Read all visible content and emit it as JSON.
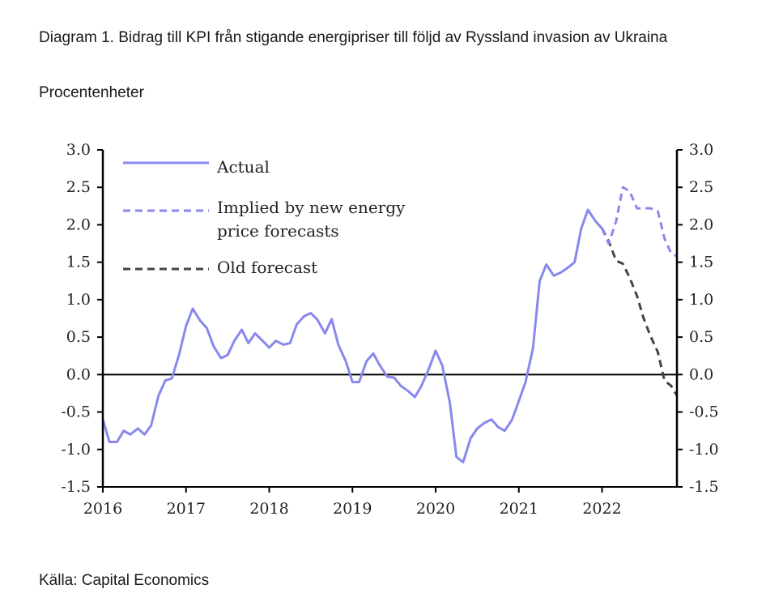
{
  "page": {
    "title": "Diagram 1. Bidrag till KPI från stigande energipriser till följd av Ryssland invasion av Ukraina",
    "subtitle": "Procentenheter",
    "source": "Källa: Capital Economics"
  },
  "colors": {
    "actual": "#8888ee",
    "implied": "#8888ee",
    "old": "#444444",
    "axis": "#000000"
  },
  "chart_data": {
    "type": "line",
    "title": "Bidrag till KPI från stigande energipriser till följd av Ryssland invasion av Ukraina",
    "ylabel": "Procentenheter",
    "ylim": [
      -1.5,
      3.0
    ],
    "xlim": [
      2016.0,
      2022.9
    ],
    "y_ticks": [
      "3.0",
      "2.5",
      "2.0",
      "1.5",
      "1.0",
      "0.5",
      "0.0",
      "-0.5",
      "-1.0",
      "-1.5"
    ],
    "x_ticks": [
      "2016",
      "2017",
      "2018",
      "2019",
      "2020",
      "2021",
      "2022"
    ],
    "legend": [
      "Actual",
      "Implied by new energy",
      "price forecasts",
      "Old forecast"
    ],
    "legend_position": "top-left",
    "series": [
      {
        "name": "Actual",
        "style": "solid",
        "x": [
          2016.0,
          2016.08,
          2016.17,
          2016.25,
          2016.33,
          2016.42,
          2016.5,
          2016.58,
          2016.67,
          2016.75,
          2016.83,
          2016.92,
          2017.0,
          2017.08,
          2017.17,
          2017.25,
          2017.33,
          2017.42,
          2017.5,
          2017.58,
          2017.67,
          2017.75,
          2017.83,
          2017.92,
          2018.0,
          2018.08,
          2018.17,
          2018.25,
          2018.33,
          2018.42,
          2018.5,
          2018.58,
          2018.67,
          2018.75,
          2018.83,
          2018.92,
          2019.0,
          2019.08,
          2019.17,
          2019.25,
          2019.33,
          2019.42,
          2019.5,
          2019.58,
          2019.67,
          2019.75,
          2019.83,
          2019.92,
          2020.0,
          2020.08,
          2020.17,
          2020.25,
          2020.33,
          2020.42,
          2020.5,
          2020.58,
          2020.67,
          2020.75,
          2020.83,
          2020.92,
          2021.0,
          2021.08,
          2021.17,
          2021.25,
          2021.33,
          2021.42,
          2021.5,
          2021.58,
          2021.67,
          2021.75,
          2021.83,
          2021.92,
          2022.0
        ],
        "values": [
          -0.6,
          -0.9,
          -0.9,
          -0.75,
          -0.8,
          -0.72,
          -0.8,
          -0.68,
          -0.28,
          -0.08,
          -0.05,
          0.28,
          0.65,
          0.88,
          0.72,
          0.62,
          0.38,
          0.22,
          0.26,
          0.45,
          0.6,
          0.42,
          0.55,
          0.45,
          0.36,
          0.45,
          0.4,
          0.42,
          0.67,
          0.78,
          0.82,
          0.73,
          0.55,
          0.74,
          0.4,
          0.18,
          -0.1,
          -0.1,
          0.18,
          0.28,
          0.12,
          -0.03,
          -0.04,
          -0.15,
          -0.22,
          -0.3,
          -0.15,
          0.08,
          0.32,
          0.12,
          -0.37,
          -1.1,
          -1.17,
          -0.85,
          -0.72,
          -0.65,
          -0.6,
          -0.7,
          -0.75,
          -0.6,
          -0.35,
          -0.1,
          0.35,
          1.25,
          1.47,
          1.32,
          1.36,
          1.42,
          1.5,
          1.95,
          2.2,
          2.05,
          1.95
        ]
      },
      {
        "name": "Implied by new energy price forecasts",
        "style": "dashed",
        "x": [
          2022.0,
          2022.08,
          2022.17,
          2022.25,
          2022.33,
          2022.42,
          2022.5,
          2022.58,
          2022.67,
          2022.75,
          2022.83,
          2022.9
        ],
        "values": [
          1.95,
          1.75,
          2.05,
          2.5,
          2.45,
          2.22,
          2.22,
          2.22,
          2.18,
          1.82,
          1.62,
          1.58
        ]
      },
      {
        "name": "Old forecast",
        "style": "dashed",
        "x": [
          2022.0,
          2022.08,
          2022.17,
          2022.25,
          2022.33,
          2022.42,
          2022.5,
          2022.58,
          2022.67,
          2022.75,
          2022.83,
          2022.9
        ],
        "values": [
          1.95,
          1.78,
          1.52,
          1.48,
          1.3,
          1.05,
          0.75,
          0.52,
          0.3,
          -0.08,
          -0.15,
          -0.28
        ]
      }
    ]
  }
}
